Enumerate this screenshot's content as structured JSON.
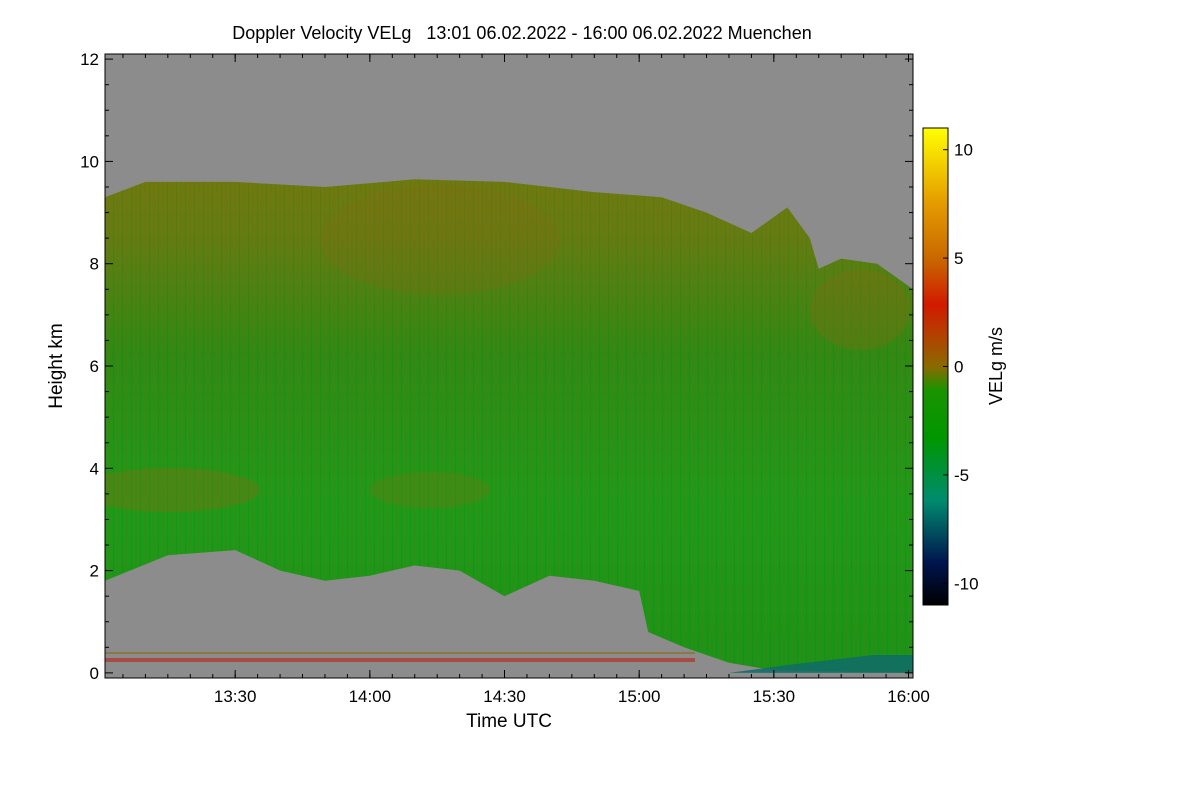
{
  "chart_data": {
    "type": "heatmap",
    "title": "Doppler Velocity VELg   13:01 06.02.2022 - 16:00 06.02.2022 Muenchen",
    "xlabel": "Time UTC",
    "ylabel": "Height km",
    "xlim_minutes": [
      781,
      961
    ],
    "ylim": [
      -0.1,
      12.1
    ],
    "x_ticks": [
      {
        "minutes": 810,
        "label": "13:30"
      },
      {
        "minutes": 840,
        "label": "14:00"
      },
      {
        "minutes": 870,
        "label": "14:30"
      },
      {
        "minutes": 900,
        "label": "15:00"
      },
      {
        "minutes": 930,
        "label": "15:30"
      },
      {
        "minutes": 960,
        "label": "16:00"
      }
    ],
    "y_ticks": [
      {
        "value": 0,
        "label": "0"
      },
      {
        "value": 2,
        "label": "2"
      },
      {
        "value": 4,
        "label": "4"
      },
      {
        "value": 6,
        "label": "6"
      },
      {
        "value": 8,
        "label": "8"
      },
      {
        "value": 10,
        "label": "10"
      },
      {
        "value": 12,
        "label": "12"
      }
    ],
    "colorbar": {
      "label": "VELg m/s",
      "range": [
        -11,
        11
      ],
      "ticks": [
        {
          "value": 10,
          "label": "10"
        },
        {
          "value": 5,
          "label": "5"
        },
        {
          "value": 0,
          "label": "0"
        },
        {
          "value": -5,
          "label": "-5"
        },
        {
          "value": -10,
          "label": "-10"
        }
      ],
      "colors": [
        "#000000",
        "#00154f",
        "#008c6e",
        "#009600",
        "#1a9400",
        "#8a6a00",
        "#b04400",
        "#d11a00",
        "#d57a00",
        "#f0c000",
        "#ffff00"
      ]
    },
    "regions": [
      {
        "name": "upper-cloud",
        "velocity_ms": -0.5,
        "top_km_by_time": [
          [
            781,
            9.3
          ],
          [
            790,
            9.6
          ],
          [
            810,
            9.6
          ],
          [
            830,
            9.5
          ],
          [
            850,
            9.65
          ],
          [
            870,
            9.6
          ],
          [
            890,
            9.4
          ],
          [
            905,
            9.3
          ],
          [
            915,
            9.0
          ],
          [
            925,
            8.6
          ],
          [
            933,
            9.1
          ],
          [
            938,
            8.5
          ],
          [
            940,
            7.9
          ],
          [
            945,
            8.1
          ],
          [
            953,
            8.0
          ],
          [
            961,
            7.5
          ]
        ]
      },
      {
        "name": "mid-cloud",
        "velocity_ms": -1.8
      },
      {
        "name": "cloud-base",
        "base_km_by_time": [
          [
            781,
            1.8
          ],
          [
            795,
            2.3
          ],
          [
            810,
            2.4
          ],
          [
            820,
            2.0
          ],
          [
            830,
            1.8
          ],
          [
            840,
            1.9
          ],
          [
            850,
            2.1
          ],
          [
            860,
            2.0
          ],
          [
            870,
            1.5
          ],
          [
            880,
            1.9
          ],
          [
            890,
            1.8
          ],
          [
            900,
            1.6
          ],
          [
            902,
            0.8
          ],
          [
            910,
            0.5
          ],
          [
            920,
            0.2
          ],
          [
            930,
            0.05
          ],
          [
            961,
            0.0
          ]
        ]
      },
      {
        "name": "near-ground-precip",
        "velocity_ms": -4.5,
        "time_range_min": [
          920,
          961
        ],
        "height_km_max": 0.35
      }
    ],
    "no_data_color": "#8c8c8c"
  }
}
